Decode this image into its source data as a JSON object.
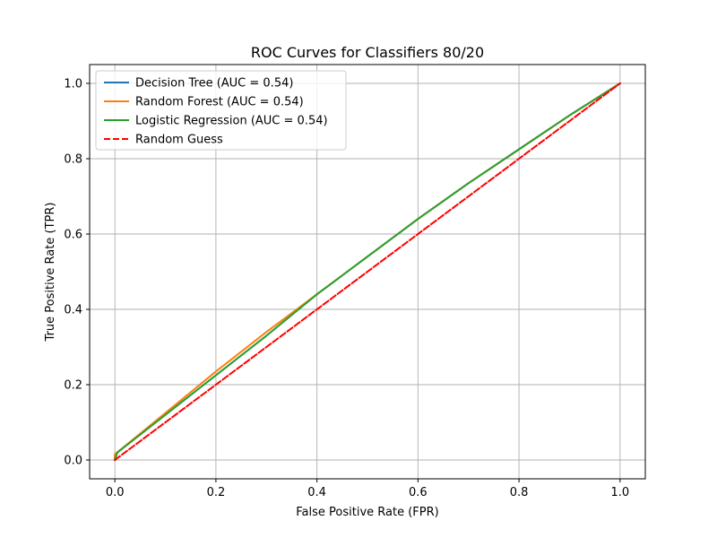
{
  "chart_data": {
    "type": "line",
    "title": "ROC Curves for Classifiers 80/20",
    "xlabel": "False Positive Rate (FPR)",
    "ylabel": "True Positive Rate (TPR)",
    "xlim": [
      -0.05,
      1.05
    ],
    "ylim": [
      -0.05,
      1.05
    ],
    "xticks": [
      "0.0",
      "0.2",
      "0.4",
      "0.6",
      "0.8",
      "1.0"
    ],
    "yticks": [
      "0.0",
      "0.2",
      "0.4",
      "0.6",
      "0.8",
      "1.0"
    ],
    "grid": true,
    "legend_position": "top-left",
    "series": [
      {
        "name": "Decision Tree (AUC = 0.54)",
        "color": "#1f77b4",
        "dash": "solid",
        "x": [
          0.0,
          0.0,
          0.1,
          0.2,
          0.3,
          0.4,
          0.5,
          0.6,
          0.7,
          0.8,
          0.9,
          1.0
        ],
        "y": [
          0.0,
          0.015,
          0.12,
          0.225,
          0.33,
          0.44,
          0.54,
          0.64,
          0.735,
          0.825,
          0.915,
          1.0
        ]
      },
      {
        "name": "Random Forest (AUC = 0.54)",
        "color": "#ff7f0e",
        "dash": "solid",
        "x": [
          0.0,
          0.0,
          0.1,
          0.2,
          0.3,
          0.4,
          0.5,
          0.6,
          0.7,
          0.8,
          0.9,
          1.0
        ],
        "y": [
          0.0,
          0.015,
          0.125,
          0.235,
          0.34,
          0.44,
          0.54,
          0.64,
          0.735,
          0.825,
          0.915,
          1.0
        ]
      },
      {
        "name": "Logistic Regression (AUC = 0.54)",
        "color": "#2ca02c",
        "dash": "solid",
        "x": [
          0.0,
          0.005,
          0.1,
          0.2,
          0.3,
          0.4,
          0.5,
          0.6,
          0.7,
          0.8,
          0.9,
          1.0
        ],
        "y": [
          0.0,
          0.02,
          0.12,
          0.225,
          0.33,
          0.44,
          0.54,
          0.64,
          0.735,
          0.825,
          0.915,
          1.0
        ]
      },
      {
        "name": "Random Guess",
        "color": "#ff0000",
        "dash": "dashed",
        "x": [
          0.0,
          1.0
        ],
        "y": [
          0.0,
          1.0
        ]
      }
    ]
  }
}
